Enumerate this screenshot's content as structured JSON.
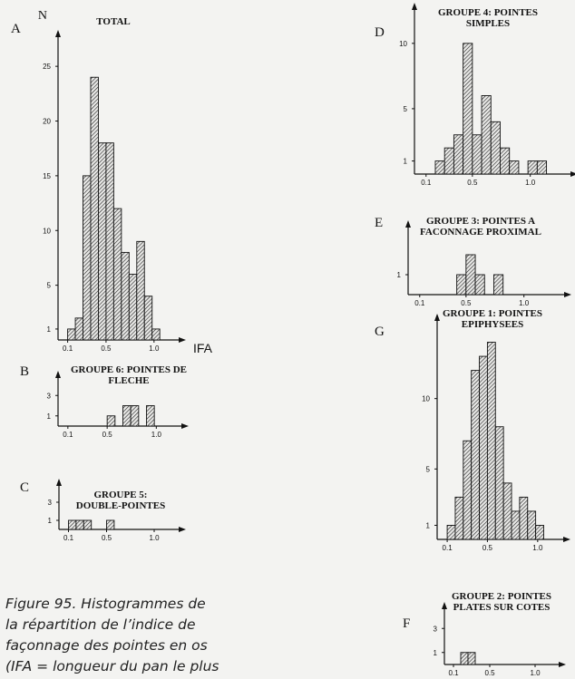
{
  "chart_data": [
    {
      "type": "histogram",
      "panel_label": "A",
      "title": "TOTAL",
      "ylabel": "N",
      "xlabel": "IFA",
      "bins": [
        0.1,
        0.18,
        0.26,
        0.34,
        0.42,
        0.5,
        0.58,
        0.66,
        0.74,
        0.82,
        0.9,
        0.98,
        1.06
      ],
      "counts": [
        1,
        2,
        15,
        24,
        18,
        18,
        12,
        8,
        6,
        9,
        4,
        1
      ],
      "xlim": [
        0,
        1.2
      ],
      "ylim": [
        0,
        27
      ],
      "xticks": [
        0.1,
        0.5,
        {
          "value": 1,
          "label": "1.0"
        }
      ],
      "yticks": [
        1,
        5,
        10,
        15,
        20,
        25
      ]
    },
    {
      "type": "histogram",
      "panel_label": "D",
      "title": "GROUPE 4: POINTES SIMPLES",
      "bins": [
        0.18,
        0.26,
        0.34,
        0.42,
        0.5,
        0.58,
        0.66,
        0.74,
        0.82,
        0.9,
        0.98,
        1.06,
        1.14
      ],
      "counts": [
        1,
        2,
        3,
        10,
        3,
        6,
        4,
        2,
        1,
        0,
        1,
        1
      ],
      "xlim": [
        0,
        1.3
      ],
      "ylim": [
        0,
        12
      ],
      "xticks": [
        0.1,
        0.5,
        {
          "value": 1,
          "label": "1.0"
        }
      ],
      "yticks": [
        1,
        5,
        10
      ]
    },
    {
      "type": "histogram",
      "panel_label": "E",
      "title": "GROUPE 3: POINTES A FACONNAGE PROXIMAL",
      "bins": [
        0.42,
        0.5,
        0.58,
        0.66,
        0.74,
        0.82
      ],
      "counts": [
        1,
        2,
        1,
        0,
        1
      ],
      "xlim": [
        0,
        1.3
      ],
      "ylim": [
        0,
        3
      ],
      "xticks": [
        0.1,
        0.5,
        {
          "value": 1,
          "label": "1.0"
        }
      ],
      "yticks": [
        1
      ]
    },
    {
      "type": "histogram",
      "panel_label": "G",
      "title": "GROUPE 1: POINTES EPIPHYSEES",
      "bins": [
        0.1,
        0.18,
        0.26,
        0.34,
        0.42,
        0.5,
        0.58,
        0.66,
        0.74,
        0.82,
        0.9,
        0.98,
        1.06
      ],
      "counts": [
        1,
        3,
        7,
        12,
        13,
        14,
        8,
        4,
        2,
        3,
        2,
        1
      ],
      "xlim": [
        0,
        1.2
      ],
      "ylim": [
        0,
        15
      ],
      "xticks": [
        0.1,
        0.5,
        {
          "value": 1,
          "label": "1.0"
        }
      ],
      "yticks": [
        1,
        5,
        10
      ]
    },
    {
      "type": "histogram",
      "panel_label": "B",
      "title": "GROUPE 6: POINTES DE FLECHE",
      "bins": [
        0.5,
        0.58,
        0.66,
        0.74,
        0.82,
        0.9,
        0.98
      ],
      "counts": [
        1,
        0,
        2,
        2,
        0,
        2
      ],
      "xlim": [
        0,
        1.2
      ],
      "ylim": [
        0,
        4
      ],
      "xticks": [
        0.1,
        0.5,
        {
          "value": 1,
          "label": "1.0"
        }
      ],
      "yticks": [
        1,
        3
      ]
    },
    {
      "type": "histogram",
      "panel_label": "C",
      "title": "GROUPE 5: DOUBLE-POINTES",
      "bins": [
        0.1,
        0.18,
        0.26,
        0.34,
        0.42,
        0.5,
        0.58
      ],
      "counts": [
        1,
        1,
        1,
        0,
        0,
        1
      ],
      "xlim": [
        0,
        1.2
      ],
      "ylim": [
        0,
        4
      ],
      "xticks": [
        0.1,
        0.5,
        {
          "value": 1,
          "label": "1.0"
        }
      ],
      "yticks": [
        1,
        3
      ]
    },
    {
      "type": "histogram",
      "panel_label": "F",
      "title": "GROUPE 2: POINTES PLATES SUR COTES",
      "bins": [
        0.18,
        0.26,
        0.34
      ],
      "counts": [
        1,
        1
      ],
      "xlim": [
        0,
        1.2
      ],
      "ylim": [
        0,
        4
      ],
      "xticks": [
        0.1,
        0.5,
        {
          "value": 1,
          "label": "1.0"
        }
      ],
      "yticks": [
        1,
        3
      ]
    }
  ],
  "caption": "Figure 95. Histogrammes de la répartition de l’indice de façonnage des pointes en os (IFA = longueur du pan le plus long/ longueur totale)."
}
